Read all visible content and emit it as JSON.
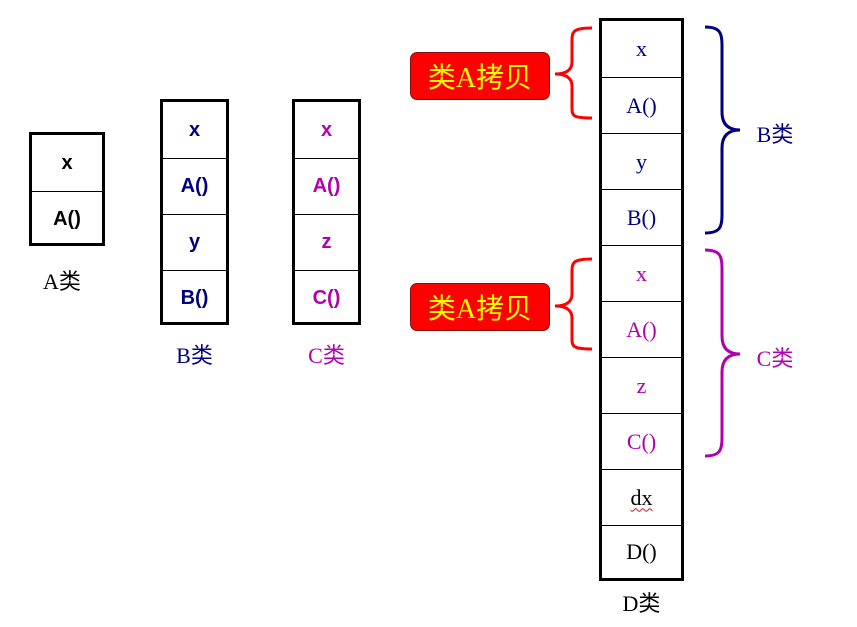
{
  "class_a": {
    "fields": [
      "x",
      "A()"
    ],
    "caption": "A类"
  },
  "class_b": {
    "fields": [
      "x",
      "A()",
      "y",
      "B()"
    ],
    "caption": "B类"
  },
  "class_c": {
    "fields": [
      "x",
      "A()",
      "z",
      "C()"
    ],
    "caption": "C类"
  },
  "class_d": {
    "fields": [
      "x",
      "A()",
      "y",
      "B()",
      "x",
      "A()",
      "z",
      "C()",
      "dx",
      "D()"
    ],
    "caption": "D类"
  },
  "tags": {
    "copy_a_top": "类A拷贝",
    "copy_a_bottom": "类A拷贝"
  },
  "brace_labels": {
    "b": "B类",
    "c": "C类"
  },
  "colors": {
    "black": "#000000",
    "navy": "#000080",
    "purple": "#b000b0",
    "red": "#ff0000",
    "yellow": "#ffff00"
  }
}
